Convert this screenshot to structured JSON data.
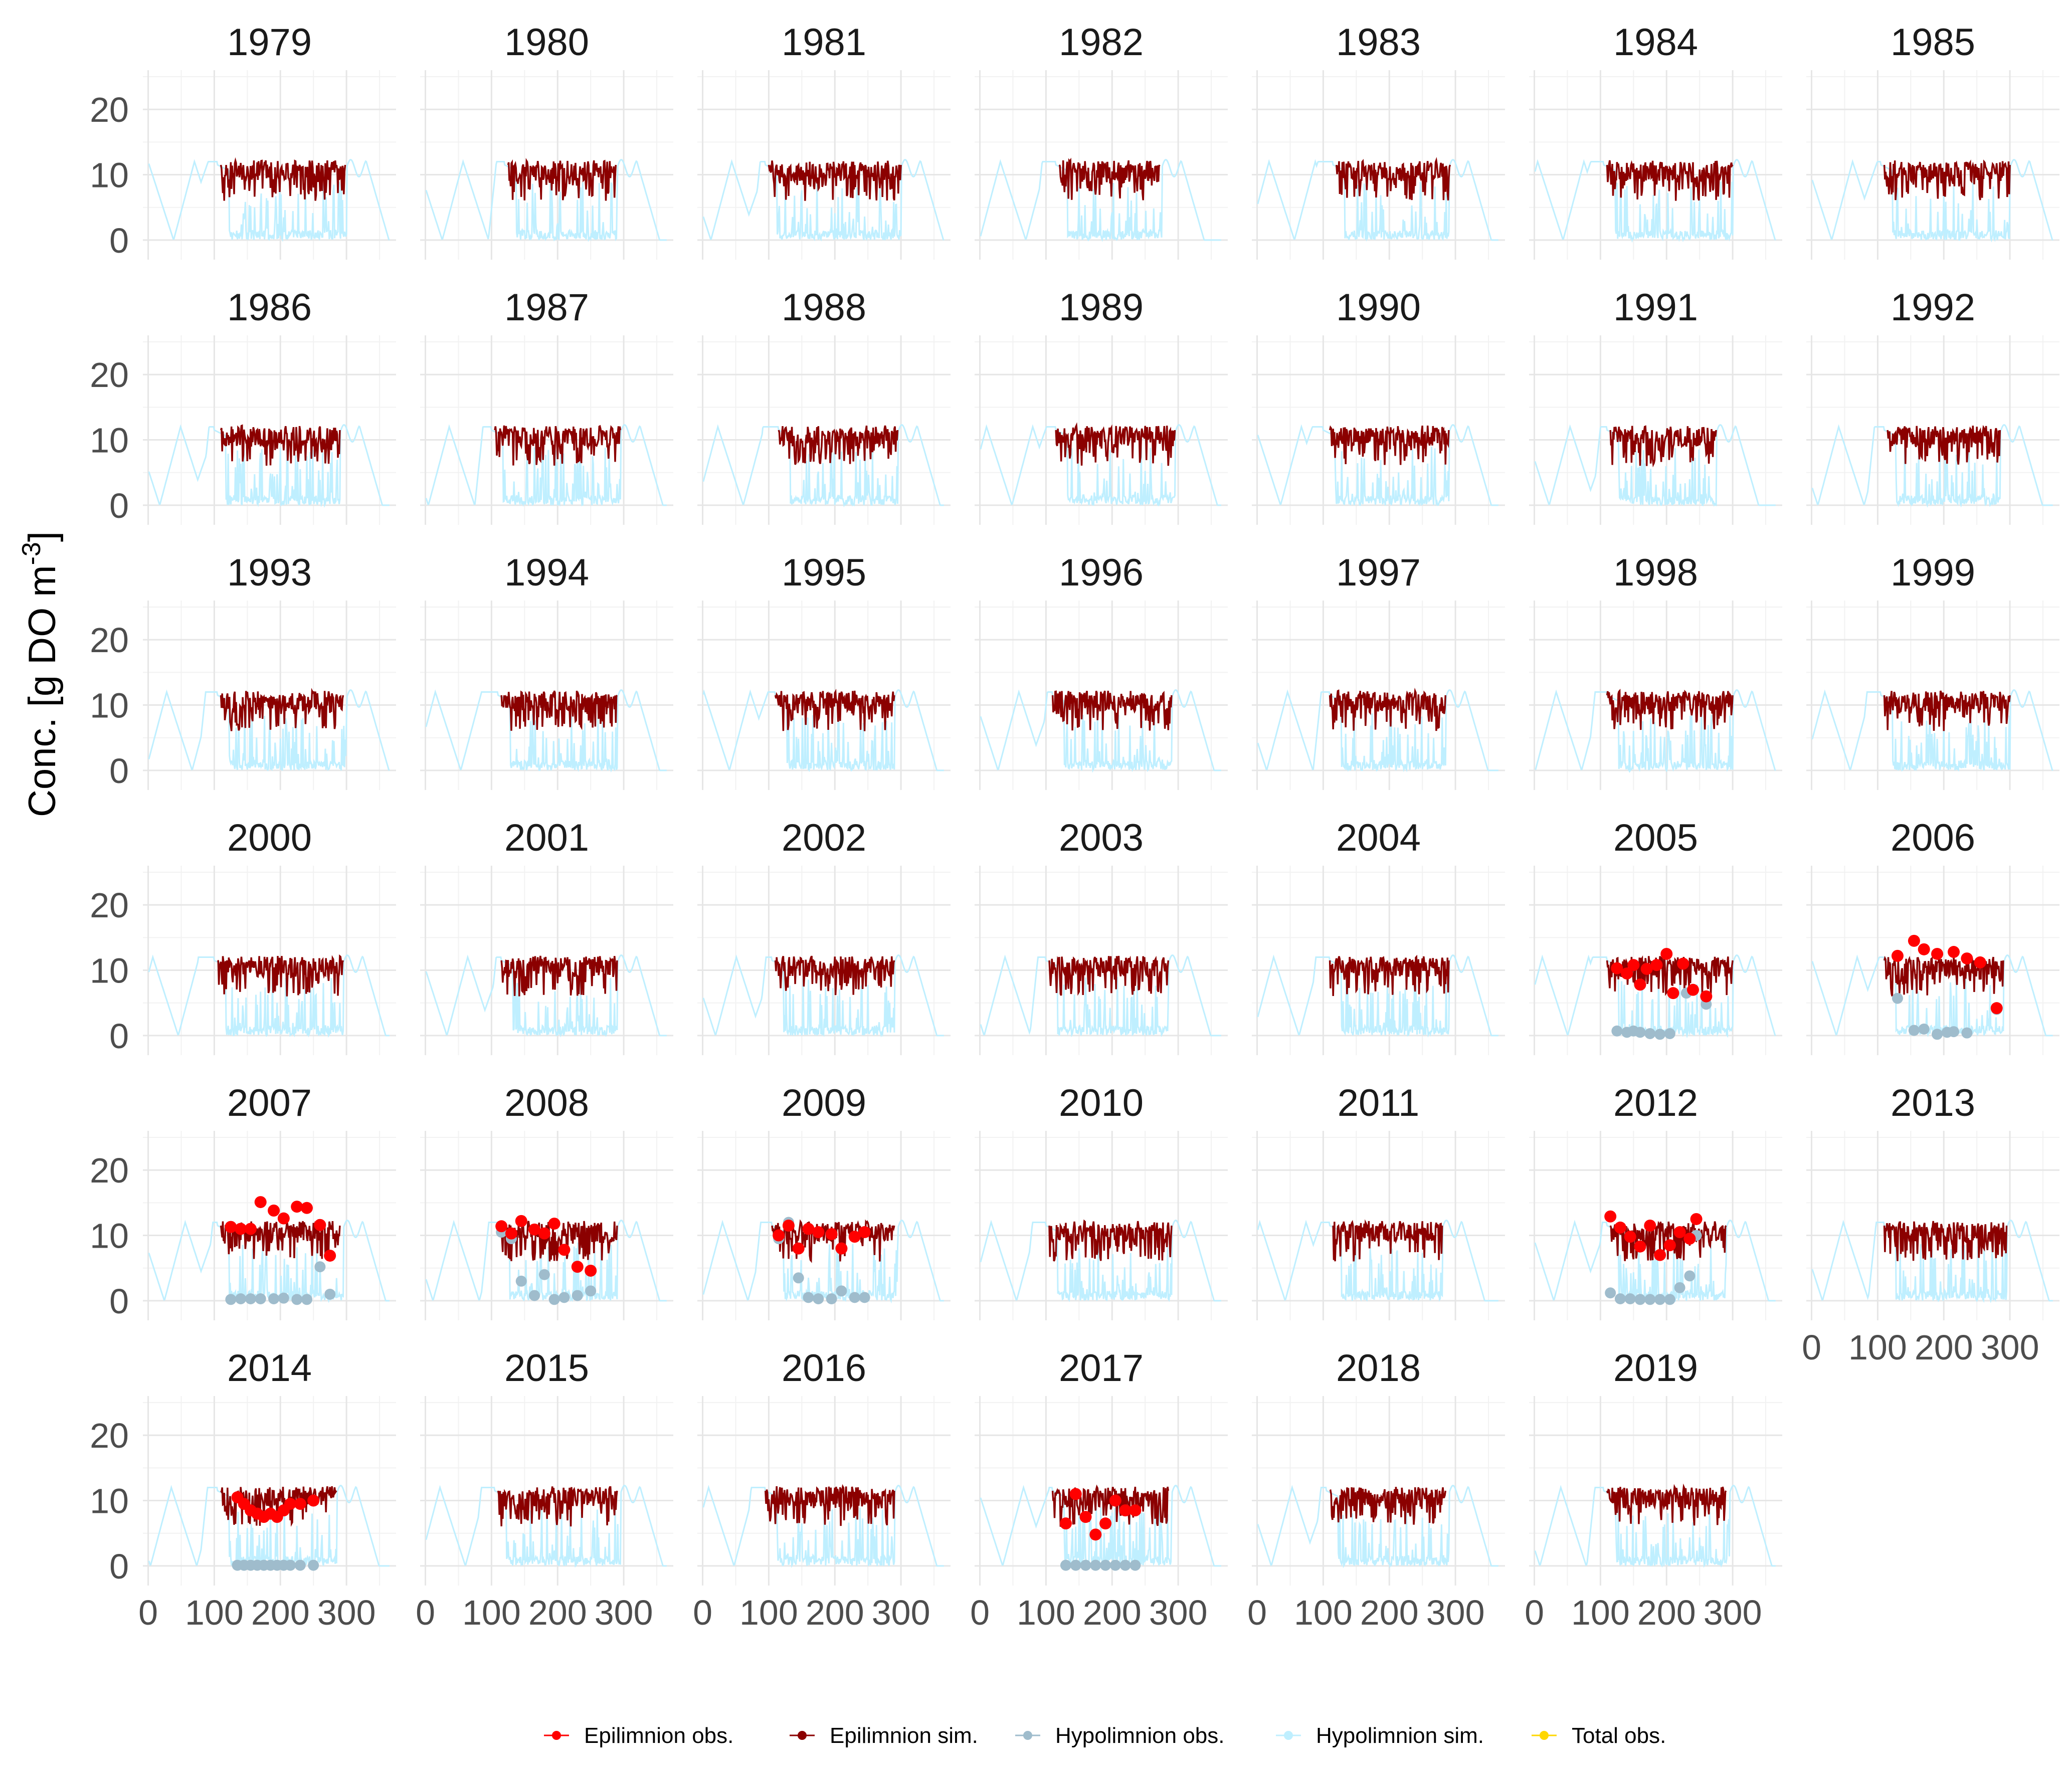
{
  "chart_data": {
    "type": "line",
    "ylabel": "Conc. [g DO m",
    "ylabel_sup": "-3",
    "ylabel_close": "]",
    "ylim": [
      -3,
      26
    ],
    "xlim": [
      -8,
      375
    ],
    "y_ticks": [
      "0",
      "10",
      "20"
    ],
    "y_tick_values": [
      0,
      10,
      20
    ],
    "x_ticks": [
      "0",
      "100",
      "200",
      "300"
    ],
    "x_tick_values": [
      0,
      100,
      200,
      300
    ],
    "grid": true,
    "legend_position": "bottom",
    "legend": [
      {
        "label": "Epilimnion obs.",
        "color": "#ff0000",
        "kind": "point"
      },
      {
        "label": "Epilimnion sim.",
        "color": "#8b0000",
        "kind": "line"
      },
      {
        "label": "Hypolimnion obs.",
        "color": "#9fbccc",
        "kind": "point"
      },
      {
        "label": "Hypolimnion sim.",
        "color": "#bfefff",
        "kind": "line"
      },
      {
        "label": "Total obs.",
        "color": "#ffd700",
        "kind": "point"
      }
    ],
    "panels": [
      {
        "year": "1979",
        "ice_in": 105,
        "ice_out": 300,
        "epi_start": 110,
        "epi_end": 298
      },
      {
        "year": "1980",
        "ice_in": 120,
        "ice_out": 290,
        "epi_start": 125,
        "epi_end": 288
      },
      {
        "year": "1981",
        "ice_in": 95,
        "ice_out": 300,
        "epi_start": 100,
        "epi_end": 300
      },
      {
        "year": "1982",
        "ice_in": 115,
        "ice_out": 275,
        "epi_start": 120,
        "epi_end": 272
      },
      {
        "year": "1983",
        "ice_in": 115,
        "ice_out": 290,
        "epi_start": 120,
        "epi_end": 292
      },
      {
        "year": "1984",
        "ice_in": 105,
        "ice_out": 300,
        "epi_start": 110,
        "epi_end": 300
      },
      {
        "year": "1985",
        "ice_in": 105,
        "ice_out": 300,
        "epi_start": 110,
        "epi_end": 300
      },
      {
        "year": "1986",
        "ice_in": 100,
        "ice_out": 290,
        "epi_start": 110,
        "epi_end": 290
      },
      {
        "year": "1987",
        "ice_in": 100,
        "ice_out": 295,
        "epi_start": 105,
        "epi_end": 295
      },
      {
        "year": "1988",
        "ice_in": 115,
        "ice_out": 295,
        "epi_start": 115,
        "epi_end": 295
      },
      {
        "year": "1989",
        "ice_in": 115,
        "ice_out": 295,
        "epi_start": 115,
        "epi_end": 295
      },
      {
        "year": "1990",
        "ice_in": 100,
        "ice_out": 290,
        "epi_start": 110,
        "epi_end": 290
      },
      {
        "year": "1991",
        "ice_in": 110,
        "ice_out": 275,
        "epi_start": 115,
        "epi_end": 275
      },
      {
        "year": "1992",
        "ice_in": 110,
        "ice_out": 285,
        "epi_start": 115,
        "epi_end": 285
      },
      {
        "year": "1993",
        "ice_in": 105,
        "ice_out": 300,
        "epi_start": 110,
        "epi_end": 295
      },
      {
        "year": "1994",
        "ice_in": 110,
        "ice_out": 290,
        "epi_start": 115,
        "epi_end": 290
      },
      {
        "year": "1995",
        "ice_in": 110,
        "ice_out": 290,
        "epi_start": 110,
        "epi_end": 290
      },
      {
        "year": "1996",
        "ice_in": 110,
        "ice_out": 290,
        "epi_start": 110,
        "epi_end": 290
      },
      {
        "year": "1997",
        "ice_in": 110,
        "ice_out": 285,
        "epi_start": 110,
        "epi_end": 285
      },
      {
        "year": "1998",
        "ice_in": 110,
        "ice_out": 300,
        "epi_start": 110,
        "epi_end": 300
      },
      {
        "year": "1999",
        "ice_in": 105,
        "ice_out": 300,
        "epi_start": 110,
        "epi_end": 300
      },
      {
        "year": "2000",
        "ice_in": 100,
        "ice_out": 295,
        "epi_start": 105,
        "epi_end": 295
      },
      {
        "year": "2001",
        "ice_in": 115,
        "ice_out": 290,
        "epi_start": 115,
        "epi_end": 290
      },
      {
        "year": "2002",
        "ice_in": 105,
        "ice_out": 290,
        "epi_start": 110,
        "epi_end": 290
      },
      {
        "year": "2003",
        "ice_in": 100,
        "ice_out": 285,
        "epi_start": 105,
        "epi_end": 285
      },
      {
        "year": "2004",
        "ice_in": 110,
        "ice_out": 290,
        "epi_start": 110,
        "epi_end": 290
      },
      {
        "year": "2005",
        "ice_in": 110,
        "ice_out": 300,
        "epi_start": 110,
        "epi_end": 300,
        "epi_obs": [
          [
            125,
            10.3
          ],
          [
            140,
            9.5
          ],
          [
            150,
            10.8
          ],
          [
            160,
            7.8
          ],
          [
            170,
            10.2
          ],
          [
            185,
            10.8
          ],
          [
            200,
            12.5
          ],
          [
            210,
            6.5
          ],
          [
            225,
            11
          ],
          [
            240,
            7
          ],
          [
            260,
            6
          ]
        ],
        "hypo_obs": [
          [
            125,
            0.7
          ],
          [
            140,
            0.5
          ],
          [
            150,
            0.7
          ],
          [
            160,
            0.5
          ],
          [
            175,
            0.3
          ],
          [
            190,
            0.2
          ],
          [
            205,
            0.3
          ],
          [
            230,
            6.5
          ],
          [
            260,
            4.8
          ]
        ]
      },
      {
        "year": "2006",
        "ice_in": 110,
        "ice_out": 290,
        "epi_start": 110,
        "epi_end": 290,
        "epi_obs": [
          [
            130,
            12.2
          ],
          [
            155,
            14.5
          ],
          [
            170,
            13.2
          ],
          [
            190,
            12.5
          ],
          [
            215,
            12.8
          ],
          [
            235,
            11.8
          ],
          [
            255,
            11.2
          ],
          [
            280,
            4.2
          ]
        ],
        "hypo_obs": [
          [
            130,
            5.7
          ],
          [
            155,
            0.8
          ],
          [
            170,
            1
          ],
          [
            190,
            0.2
          ],
          [
            205,
            0.5
          ],
          [
            215,
            0.6
          ],
          [
            235,
            0.4
          ],
          [
            280,
            4
          ]
        ]
      },
      {
        "year": "2007",
        "ice_in": 105,
        "ice_out": 295,
        "epi_start": 110,
        "epi_end": 290,
        "epi_obs": [
          [
            125,
            11.3
          ],
          [
            140,
            11
          ],
          [
            155,
            11
          ],
          [
            170,
            15.1
          ],
          [
            190,
            13.8
          ],
          [
            205,
            12.6
          ],
          [
            225,
            14.4
          ],
          [
            240,
            14.2
          ],
          [
            260,
            11.6
          ],
          [
            275,
            6.9
          ]
        ],
        "hypo_obs": [
          [
            125,
            0.2
          ],
          [
            140,
            0.3
          ],
          [
            155,
            0.3
          ],
          [
            170,
            0.3
          ],
          [
            190,
            0.3
          ],
          [
            205,
            0.4
          ],
          [
            225,
            0.2
          ],
          [
            240,
            0.2
          ],
          [
            260,
            5.2
          ],
          [
            275,
            1
          ]
        ]
      },
      {
        "year": "2008",
        "ice_in": 110,
        "ice_out": 290,
        "epi_start": 115,
        "epi_end": 290,
        "epi_obs": [
          [
            115,
            11.4
          ],
          [
            130,
            10.3
          ],
          [
            145,
            12.2
          ],
          [
            165,
            10.9
          ],
          [
            180,
            10.3
          ],
          [
            195,
            11.8
          ],
          [
            210,
            7.8
          ],
          [
            230,
            5.2
          ],
          [
            250,
            4.6
          ]
        ],
        "hypo_obs": [
          [
            115,
            10.5
          ],
          [
            130,
            9.5
          ],
          [
            145,
            3
          ],
          [
            165,
            0.8
          ],
          [
            180,
            4
          ],
          [
            195,
            0.2
          ],
          [
            210,
            0.5
          ],
          [
            230,
            0.8
          ],
          [
            250,
            1.5
          ]
        ]
      },
      {
        "year": "2009",
        "ice_in": 105,
        "ice_out": 295,
        "epi_start": 105,
        "epi_end": 290,
        "epi_obs": [
          [
            115,
            10
          ],
          [
            130,
            11.5
          ],
          [
            145,
            8
          ],
          [
            160,
            11
          ],
          [
            175,
            10.5
          ],
          [
            195,
            10.2
          ],
          [
            210,
            8
          ],
          [
            230,
            9.8
          ],
          [
            245,
            10.5
          ]
        ],
        "hypo_obs": [
          [
            115,
            9.5
          ],
          [
            130,
            12
          ],
          [
            145,
            3.5
          ],
          [
            160,
            0.5
          ],
          [
            175,
            0.3
          ],
          [
            195,
            0.3
          ],
          [
            210,
            1.5
          ],
          [
            230,
            0.5
          ],
          [
            245,
            0.5
          ]
        ]
      },
      {
        "year": "2010",
        "ice_in": 100,
        "ice_out": 290,
        "epi_start": 105,
        "epi_end": 290
      },
      {
        "year": "2011",
        "ice_in": 110,
        "ice_out": 280,
        "epi_start": 115,
        "epi_end": 280
      },
      {
        "year": "2012",
        "ice_in": 110,
        "ice_out": 290,
        "epi_start": 115,
        "epi_end": 290,
        "epi_obs": [
          [
            115,
            12.9
          ],
          [
            130,
            11.2
          ],
          [
            145,
            9.8
          ],
          [
            160,
            8.3
          ],
          [
            175,
            11.5
          ],
          [
            190,
            7
          ],
          [
            205,
            8.5
          ],
          [
            220,
            10.5
          ],
          [
            235,
            9.5
          ],
          [
            245,
            12.5
          ]
        ],
        "hypo_obs": [
          [
            115,
            1.2
          ],
          [
            130,
            0.3
          ],
          [
            145,
            0.3
          ],
          [
            160,
            0.2
          ],
          [
            175,
            0.2
          ],
          [
            190,
            0.2
          ],
          [
            205,
            0.2
          ],
          [
            220,
            2
          ],
          [
            235,
            3.8
          ],
          [
            245,
            10
          ]
        ]
      },
      {
        "year": "2013",
        "ice_in": 110,
        "ice_out": 295,
        "epi_start": 110,
        "epi_end": 295
      },
      {
        "year": "2014",
        "ice_in": 105,
        "ice_out": 285,
        "epi_start": 110,
        "epi_end": 285,
        "epi_obs": [
          [
            135,
            10.5
          ],
          [
            145,
            9.5
          ],
          [
            155,
            8.5
          ],
          [
            165,
            8
          ],
          [
            175,
            7.5
          ],
          [
            185,
            8
          ],
          [
            195,
            7.5
          ],
          [
            205,
            8.5
          ],
          [
            215,
            9.5
          ],
          [
            230,
            9.5
          ],
          [
            250,
            10
          ]
        ],
        "hypo_obs": [
          [
            135,
            0.1
          ],
          [
            145,
            0.1
          ],
          [
            155,
            0.1
          ],
          [
            165,
            0.1
          ],
          [
            175,
            0.1
          ],
          [
            185,
            0.1
          ],
          [
            195,
            0.1
          ],
          [
            205,
            0.1
          ],
          [
            215,
            0.1
          ],
          [
            230,
            0.1
          ],
          [
            250,
            0.1
          ]
        ]
      },
      {
        "year": "2015",
        "ice_in": 105,
        "ice_out": 295,
        "epi_start": 110,
        "epi_end": 290
      },
      {
        "year": "2016",
        "ice_in": 95,
        "ice_out": 290,
        "epi_start": 95,
        "epi_end": 290
      },
      {
        "year": "2017",
        "ice_in": 110,
        "ice_out": 290,
        "epi_start": 110,
        "epi_end": 285,
        "epi_obs": [
          [
            130,
            6.5
          ],
          [
            145,
            11
          ],
          [
            160,
            7.5
          ],
          [
            175,
            4.8
          ],
          [
            190,
            6.5
          ],
          [
            205,
            10
          ],
          [
            220,
            8.5
          ],
          [
            235,
            8.5
          ]
        ],
        "hypo_obs": [
          [
            130,
            0.1
          ],
          [
            145,
            0.1
          ],
          [
            160,
            0.1
          ],
          [
            175,
            0.1
          ],
          [
            190,
            0.1
          ],
          [
            205,
            0.1
          ],
          [
            220,
            0.1
          ],
          [
            235,
            0.1
          ]
        ]
      },
      {
        "year": "2018",
        "ice_in": 105,
        "ice_out": 290,
        "epi_start": 110,
        "epi_end": 285
      },
      {
        "year": "2019",
        "ice_in": 105,
        "ice_out": 295,
        "epi_start": 110,
        "epi_end": 290
      }
    ]
  }
}
